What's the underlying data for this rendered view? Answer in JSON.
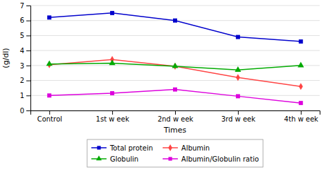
{
  "chart_data": {
    "type": "line",
    "xlabel": "Times",
    "ylabel": "(g/dl)",
    "categories": [
      "Control",
      "1st w eek",
      "2nd w eek",
      "3rd w eek",
      "4th w eek"
    ],
    "series": [
      {
        "name": "Total protein",
        "color": "#0000cc",
        "marker": "square",
        "values": [
          6.2,
          6.5,
          6.0,
          4.9,
          4.6
        ]
      },
      {
        "name": "Albumin",
        "color": "#ff4444",
        "marker": "diamond",
        "values": [
          3.05,
          3.4,
          2.95,
          2.2,
          1.6
        ]
      },
      {
        "name": "Globulin",
        "color": "#00aa00",
        "marker": "triangle",
        "values": [
          3.1,
          3.15,
          2.95,
          2.7,
          3.0
        ]
      },
      {
        "name": "Albumin/Globulin ratio",
        "color": "#dd00dd",
        "marker": "square",
        "values": [
          1.0,
          1.15,
          1.4,
          0.95,
          0.5
        ]
      }
    ],
    "ylim": [
      0,
      7
    ],
    "yticks": [
      0,
      1,
      2,
      3,
      4,
      5,
      6,
      7
    ],
    "grid": true,
    "legend": "bottom"
  }
}
